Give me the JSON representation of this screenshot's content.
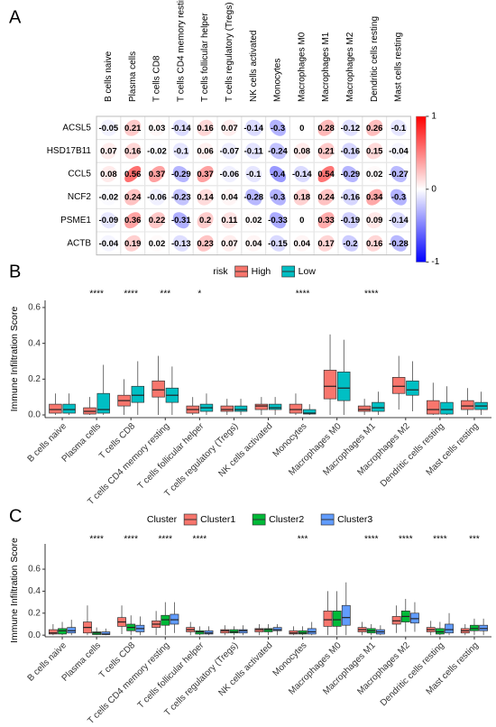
{
  "chart_data": [
    {
      "type": "correlation",
      "panel": "A",
      "rows": [
        "ACSL5",
        "HSD17B11",
        "CCL5",
        "NCF2",
        "PSME1",
        "ACTB"
      ],
      "columns": [
        "B cells naive",
        "Plasma cells",
        "T cells CD8",
        "T cells CD4 memory resting",
        "T cells follicular helper",
        "T cells regulatory (Tregs)",
        "NK cells activated",
        "Monocytes",
        "Macrophages M0",
        "Macrophages M1",
        "Macrophages M2",
        "Dendritic cells resting",
        "Mast cells resting"
      ],
      "values": [
        [
          -0.05,
          0.21,
          0.03,
          -0.14,
          0.16,
          0.07,
          -0.14,
          -0.3,
          0,
          0.28,
          -0.12,
          0.26,
          -0.1
        ],
        [
          0.07,
          0.16,
          -0.02,
          -0.1,
          0.06,
          -0.07,
          -0.11,
          -0.24,
          0.08,
          0.21,
          -0.16,
          0.15,
          -0.04
        ],
        [
          0.08,
          0.56,
          0.37,
          -0.29,
          0.37,
          -0.06,
          -0.1,
          -0.4,
          -0.14,
          0.54,
          -0.29,
          0.02,
          -0.27
        ],
        [
          -0.02,
          0.24,
          -0.06,
          -0.23,
          0.14,
          0.04,
          -0.28,
          -0.3,
          0.18,
          0.24,
          -0.16,
          0.34,
          -0.3
        ],
        [
          -0.09,
          0.36,
          0.22,
          -0.31,
          0.2,
          0.11,
          0.02,
          -0.33,
          0,
          0.33,
          -0.19,
          0.09,
          -0.14
        ],
        [
          -0.04,
          0.19,
          0.02,
          -0.13,
          0.23,
          0.07,
          0.04,
          -0.15,
          0.04,
          0.17,
          -0.2,
          0.16,
          -0.28
        ]
      ],
      "clim": [
        -1,
        1
      ],
      "cticks": [
        1,
        0,
        -1
      ],
      "colors": [
        "#0000FF",
        "#FFFFFF",
        "#FF0000"
      ]
    },
    {
      "type": "boxplot",
      "panel": "B",
      "ylabel": "Immune Infiltration Score",
      "legend_title": "risk",
      "categories": [
        "B cells naive",
        "Plasma cells",
        "T cells CD8",
        "T cells CD4 memory resting",
        "T cells follicular helper",
        "T cells regulatory (Tregs)",
        "NK cells activated",
        "Monocytes",
        "Macrophages M0",
        "Macrophages M1",
        "Macrophages M2",
        "Dendritic cells resting",
        "Mast cells resting"
      ],
      "annotations": [
        null,
        "****",
        "****",
        "***",
        "*",
        null,
        null,
        "****",
        null,
        "****",
        null,
        null,
        null
      ],
      "ylim": [
        -0.015,
        0.64
      ],
      "yticks": [
        {
          "value": 0,
          "label": "0.0"
        },
        {
          "value": 0.2,
          "label": "0.2"
        },
        {
          "value": 0.4,
          "label": "0.4"
        },
        {
          "value": 0.6,
          "label": "0.6"
        }
      ],
      "series": [
        {
          "name": "High",
          "color": "#F8766D",
          "whisker_low": [
            0,
            0,
            0,
            0,
            0,
            0,
            0,
            0,
            0,
            0,
            0.03,
            0,
            0
          ],
          "q1": [
            0.01,
            0.005,
            0.05,
            0.1,
            0.01,
            0.02,
            0.03,
            0.01,
            0.09,
            0.02,
            0.12,
            0.005,
            0.03
          ],
          "median": [
            0.03,
            0.02,
            0.08,
            0.14,
            0.03,
            0.03,
            0.05,
            0.03,
            0.16,
            0.03,
            0.16,
            0.03,
            0.05
          ],
          "q3": [
            0.06,
            0.04,
            0.11,
            0.19,
            0.05,
            0.05,
            0.06,
            0.06,
            0.25,
            0.05,
            0.21,
            0.08,
            0.08
          ],
          "whisker_high": [
            0.12,
            0.1,
            0.2,
            0.33,
            0.1,
            0.09,
            0.1,
            0.12,
            0.45,
            0.09,
            0.33,
            0.18,
            0.15
          ]
        },
        {
          "name": "Low",
          "color": "#00BFC4",
          "whisker_low": [
            0,
            0,
            0,
            0,
            0,
            0,
            0,
            0,
            0,
            0,
            0.02,
            0,
            0
          ],
          "q1": [
            0.01,
            0.01,
            0.07,
            0.07,
            0.02,
            0.02,
            0.03,
            0.005,
            0.08,
            0.02,
            0.11,
            0.005,
            0.03
          ],
          "median": [
            0.03,
            0.03,
            0.11,
            0.11,
            0.04,
            0.03,
            0.04,
            0.01,
            0.15,
            0.04,
            0.14,
            0.03,
            0.05
          ],
          "q3": [
            0.06,
            0.12,
            0.16,
            0.15,
            0.06,
            0.05,
            0.06,
            0.03,
            0.24,
            0.07,
            0.19,
            0.07,
            0.07
          ],
          "whisker_high": [
            0.12,
            0.28,
            0.3,
            0.27,
            0.12,
            0.09,
            0.1,
            0.06,
            0.42,
            0.13,
            0.3,
            0.16,
            0.13
          ]
        }
      ]
    },
    {
      "type": "boxplot",
      "panel": "C",
      "ylabel": "Immune Infiltration Score",
      "legend_title": "Cluster",
      "categories": [
        "B cells naive",
        "Plasma cells",
        "T cells CD8",
        "T cells CD4 memory resting",
        "T cells follicular helper",
        "T cells regulatory (Tregs)",
        "NK cells activated",
        "Monocytes",
        "Macrophages M0",
        "Macrophages M1",
        "Macrophages M2",
        "Dendritic cells resting",
        "Mast cells resting"
      ],
      "annotations": [
        null,
        "****",
        "****",
        "****",
        "****",
        null,
        null,
        "***",
        null,
        "****",
        "****",
        "****",
        "***"
      ],
      "ylim": [
        -0.015,
        0.83
      ],
      "yticks": [
        {
          "value": 0,
          "label": "0.0"
        },
        {
          "value": 0.2,
          "label": "0.2"
        },
        {
          "value": 0.4,
          "label": "0.4"
        },
        {
          "value": 0.6,
          "label": "0.6"
        }
      ],
      "series": [
        {
          "name": "Cluster1",
          "color": "#F8766D",
          "whisker_low": [
            0,
            0,
            0.01,
            0,
            0,
            0,
            0,
            0,
            0,
            0,
            0.02,
            0,
            0
          ],
          "q1": [
            0.01,
            0.02,
            0.08,
            0.07,
            0.03,
            0.02,
            0.03,
            0.01,
            0.08,
            0.03,
            0.1,
            0.03,
            0.02
          ],
          "median": [
            0.02,
            0.07,
            0.12,
            0.1,
            0.05,
            0.04,
            0.05,
            0.02,
            0.14,
            0.05,
            0.13,
            0.05,
            0.04
          ],
          "q3": [
            0.05,
            0.12,
            0.16,
            0.13,
            0.07,
            0.05,
            0.06,
            0.04,
            0.22,
            0.07,
            0.17,
            0.07,
            0.06
          ],
          "whisker_high": [
            0.1,
            0.27,
            0.27,
            0.22,
            0.12,
            0.09,
            0.1,
            0.08,
            0.4,
            0.12,
            0.27,
            0.13,
            0.1
          ]
        },
        {
          "name": "Cluster2",
          "color": "#00BA38",
          "whisker_low": [
            0,
            0,
            0,
            0,
            0,
            0,
            0,
            0,
            0,
            0,
            0.03,
            0,
            0
          ],
          "q1": [
            0.01,
            0.005,
            0.04,
            0.09,
            0.01,
            0.02,
            0.03,
            0.01,
            0.08,
            0.02,
            0.12,
            0.01,
            0.04
          ],
          "median": [
            0.04,
            0.02,
            0.07,
            0.14,
            0.03,
            0.03,
            0.05,
            0.02,
            0.14,
            0.04,
            0.17,
            0.03,
            0.06
          ],
          "q3": [
            0.06,
            0.03,
            0.1,
            0.18,
            0.04,
            0.05,
            0.06,
            0.04,
            0.22,
            0.06,
            0.22,
            0.06,
            0.09
          ],
          "whisker_high": [
            0.12,
            0.07,
            0.18,
            0.3,
            0.08,
            0.08,
            0.1,
            0.08,
            0.4,
            0.1,
            0.33,
            0.12,
            0.15
          ]
        },
        {
          "name": "Cluster3",
          "color": "#619CFF",
          "whisker_low": [
            0,
            0,
            0,
            0.02,
            0,
            0,
            0,
            0,
            0,
            0,
            0.03,
            0,
            0
          ],
          "q1": [
            0.02,
            0.005,
            0.03,
            0.1,
            0.01,
            0.02,
            0.04,
            0.01,
            0.09,
            0.01,
            0.11,
            0.02,
            0.04
          ],
          "median": [
            0.04,
            0.01,
            0.06,
            0.14,
            0.02,
            0.04,
            0.05,
            0.03,
            0.16,
            0.03,
            0.15,
            0.05,
            0.06
          ],
          "q3": [
            0.07,
            0.03,
            0.09,
            0.19,
            0.04,
            0.05,
            0.07,
            0.06,
            0.27,
            0.05,
            0.2,
            0.1,
            0.09
          ],
          "whisker_high": [
            0.14,
            0.06,
            0.17,
            0.3,
            0.08,
            0.09,
            0.1,
            0.12,
            0.48,
            0.09,
            0.3,
            0.2,
            0.15
          ]
        }
      ]
    }
  ]
}
